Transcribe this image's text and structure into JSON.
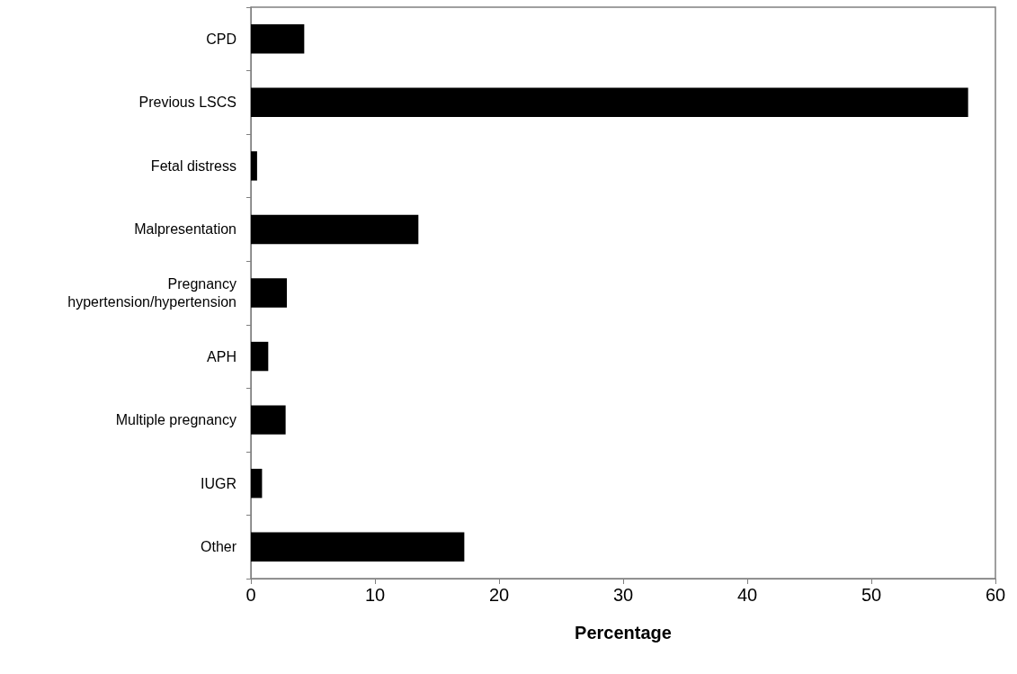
{
  "chart_data": {
    "type": "bar",
    "orientation": "horizontal",
    "xlabel": "Percentage",
    "categories": [
      "CPD",
      "Previous LSCS",
      "Fetal distress",
      "Malpresentation",
      "Pregnancy hypertension/hypertension",
      "APH",
      "Multiple pregnancy",
      "IUGR",
      "Other"
    ],
    "values": [
      4.3,
      57.8,
      0.5,
      13.5,
      2.9,
      1.4,
      2.8,
      0.9,
      17.2
    ],
    "color": "#000000",
    "xlim": [
      0,
      60
    ],
    "xticks": [
      0,
      10,
      20,
      30,
      40,
      50,
      60
    ],
    "grid": false
  }
}
